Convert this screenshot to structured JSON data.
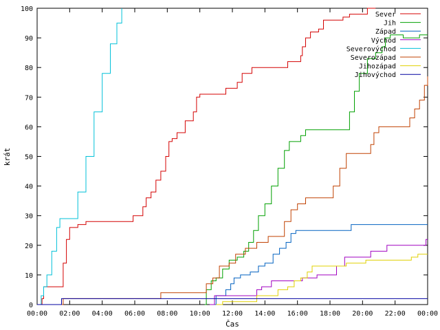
{
  "chart_data": {
    "type": "line",
    "xlabel": "Čas",
    "ylabel": "krát",
    "ylim": [
      0,
      100
    ],
    "xlim_hours": [
      0,
      24
    ],
    "x_tick_labels": [
      "00:00",
      "02:00",
      "04:00",
      "06:00",
      "08:00",
      "10:00",
      "12:00",
      "14:00",
      "16:00",
      "18:00",
      "20:00",
      "22:00",
      "00:00"
    ],
    "y_tick_labels": [
      "0",
      "10",
      "20",
      "30",
      "40",
      "50",
      "60",
      "70",
      "80",
      "90",
      "100"
    ],
    "grid": false,
    "legend_position": "top-right",
    "series": [
      {
        "name": "Sever",
        "color": "#d40000",
        "points": [
          [
            0.2,
            0
          ],
          [
            0.3,
            2
          ],
          [
            0.4,
            6
          ],
          [
            1.5,
            6
          ],
          [
            1.6,
            14
          ],
          [
            1.8,
            22
          ],
          [
            2.0,
            26
          ],
          [
            2.5,
            27
          ],
          [
            3.0,
            28
          ],
          [
            5.8,
            28
          ],
          [
            5.9,
            30
          ],
          [
            6.4,
            30
          ],
          [
            6.5,
            33
          ],
          [
            6.7,
            36
          ],
          [
            7.0,
            38
          ],
          [
            7.3,
            42
          ],
          [
            7.6,
            45
          ],
          [
            7.9,
            50
          ],
          [
            8.1,
            55
          ],
          [
            8.3,
            56
          ],
          [
            8.6,
            58
          ],
          [
            9.1,
            62
          ],
          [
            9.6,
            65
          ],
          [
            9.8,
            70
          ],
          [
            10.0,
            71
          ],
          [
            11.5,
            71
          ],
          [
            11.6,
            73
          ],
          [
            12.1,
            73
          ],
          [
            12.3,
            75
          ],
          [
            12.6,
            78
          ],
          [
            13.1,
            78
          ],
          [
            13.2,
            80
          ],
          [
            15.3,
            80
          ],
          [
            15.4,
            82
          ],
          [
            16.1,
            82
          ],
          [
            16.2,
            84
          ],
          [
            16.3,
            87
          ],
          [
            16.5,
            90
          ],
          [
            16.8,
            92
          ],
          [
            17.3,
            93
          ],
          [
            17.6,
            96
          ],
          [
            18.6,
            96
          ],
          [
            18.8,
            97
          ],
          [
            19.2,
            98
          ],
          [
            20.0,
            98
          ],
          [
            20.3,
            100
          ],
          [
            20.8,
            100
          ]
        ]
      },
      {
        "name": "Jih",
        "color": "#00a000",
        "points": [
          [
            10.3,
            0
          ],
          [
            10.4,
            5
          ],
          [
            10.7,
            8
          ],
          [
            11.0,
            9
          ],
          [
            11.4,
            12
          ],
          [
            11.8,
            15
          ],
          [
            12.3,
            16
          ],
          [
            12.7,
            18
          ],
          [
            13.0,
            21
          ],
          [
            13.3,
            25
          ],
          [
            13.6,
            30
          ],
          [
            14.0,
            34
          ],
          [
            14.4,
            40
          ],
          [
            14.8,
            46
          ],
          [
            15.2,
            52
          ],
          [
            15.5,
            55
          ],
          [
            16.1,
            55
          ],
          [
            16.2,
            57
          ],
          [
            16.5,
            59
          ],
          [
            18.9,
            59
          ],
          [
            19.2,
            65
          ],
          [
            19.5,
            72
          ],
          [
            19.8,
            78
          ],
          [
            20.3,
            83
          ],
          [
            20.8,
            85
          ],
          [
            21.2,
            87
          ],
          [
            21.4,
            90
          ],
          [
            21.7,
            91
          ],
          [
            22.3,
            91
          ],
          [
            22.5,
            90
          ],
          [
            23.3,
            90
          ],
          [
            23.5,
            91
          ],
          [
            24.0,
            91
          ]
        ]
      },
      {
        "name": "Západ",
        "color": "#0060c0",
        "points": [
          [
            10.9,
            0
          ],
          [
            11.0,
            3
          ],
          [
            11.6,
            5
          ],
          [
            11.9,
            7
          ],
          [
            12.1,
            9
          ],
          [
            12.5,
            10
          ],
          [
            13.1,
            11
          ],
          [
            13.6,
            13
          ],
          [
            14.0,
            14
          ],
          [
            14.5,
            17
          ],
          [
            14.9,
            19
          ],
          [
            15.3,
            21
          ],
          [
            15.6,
            24
          ],
          [
            15.9,
            25
          ],
          [
            19.2,
            25
          ],
          [
            19.3,
            27
          ],
          [
            24.0,
            27
          ]
        ]
      },
      {
        "name": "Východ",
        "color": "#a000c0",
        "points": [
          [
            10.6,
            0
          ],
          [
            10.9,
            3
          ],
          [
            13.3,
            3
          ],
          [
            13.5,
            5
          ],
          [
            13.8,
            6
          ],
          [
            14.2,
            6
          ],
          [
            14.4,
            8
          ],
          [
            16.1,
            8
          ],
          [
            16.3,
            9
          ],
          [
            17.0,
            9
          ],
          [
            17.2,
            10
          ],
          [
            18.2,
            10
          ],
          [
            18.4,
            13
          ],
          [
            18.6,
            13
          ],
          [
            18.9,
            16
          ],
          [
            20.3,
            16
          ],
          [
            20.5,
            18
          ],
          [
            21.3,
            18
          ],
          [
            21.5,
            20
          ],
          [
            23.8,
            20
          ],
          [
            23.9,
            22
          ],
          [
            24.0,
            22
          ]
        ]
      },
      {
        "name": "Severovýchod",
        "color": "#00c0d8",
        "points": [
          [
            0.0,
            0
          ],
          [
            0.25,
            3
          ],
          [
            0.4,
            6
          ],
          [
            0.6,
            10
          ],
          [
            0.9,
            18
          ],
          [
            1.2,
            26
          ],
          [
            1.4,
            29
          ],
          [
            2.2,
            29
          ],
          [
            2.5,
            38
          ],
          [
            3.0,
            50
          ],
          [
            3.5,
            65
          ],
          [
            4.0,
            78
          ],
          [
            4.5,
            88
          ],
          [
            4.9,
            95
          ],
          [
            5.2,
            100
          ]
        ]
      },
      {
        "name": "Severozápad",
        "color": "#c04000",
        "points": [
          [
            0.0,
            0
          ],
          [
            1.5,
            0
          ],
          [
            1.6,
            2
          ],
          [
            7.5,
            2
          ],
          [
            7.6,
            4
          ],
          [
            10.3,
            4
          ],
          [
            10.4,
            7
          ],
          [
            10.8,
            9
          ],
          [
            11.2,
            13
          ],
          [
            11.8,
            14
          ],
          [
            12.2,
            17
          ],
          [
            12.8,
            19
          ],
          [
            13.5,
            21
          ],
          [
            14.2,
            23
          ],
          [
            15.0,
            23
          ],
          [
            15.2,
            28
          ],
          [
            15.6,
            32
          ],
          [
            16.0,
            34
          ],
          [
            16.5,
            36
          ],
          [
            17.8,
            36
          ],
          [
            18.2,
            40
          ],
          [
            18.6,
            46
          ],
          [
            19.0,
            51
          ],
          [
            20.3,
            51
          ],
          [
            20.5,
            54
          ],
          [
            20.7,
            58
          ],
          [
            21.0,
            60
          ],
          [
            22.7,
            60
          ],
          [
            22.9,
            63
          ],
          [
            23.2,
            66
          ],
          [
            23.5,
            69
          ],
          [
            23.8,
            74
          ],
          [
            24.0,
            77
          ]
        ]
      },
      {
        "name": "Jihozápad",
        "color": "#e0d000",
        "points": [
          [
            11.0,
            0
          ],
          [
            11.4,
            1
          ],
          [
            13.3,
            1
          ],
          [
            13.5,
            3
          ],
          [
            14.5,
            3
          ],
          [
            14.8,
            5
          ],
          [
            15.4,
            6
          ],
          [
            15.8,
            8
          ],
          [
            16.2,
            9
          ],
          [
            16.6,
            11
          ],
          [
            16.9,
            13
          ],
          [
            18.8,
            13
          ],
          [
            19.0,
            14
          ],
          [
            20.0,
            14
          ],
          [
            20.2,
            15
          ],
          [
            22.8,
            15
          ],
          [
            23.0,
            16
          ],
          [
            23.4,
            17
          ],
          [
            24.0,
            17
          ]
        ]
      },
      {
        "name": "Jihovýchod",
        "color": "#0000a0",
        "points": [
          [
            0.0,
            0
          ],
          [
            1.4,
            0
          ],
          [
            1.5,
            2
          ],
          [
            24.0,
            2
          ]
        ]
      }
    ]
  }
}
